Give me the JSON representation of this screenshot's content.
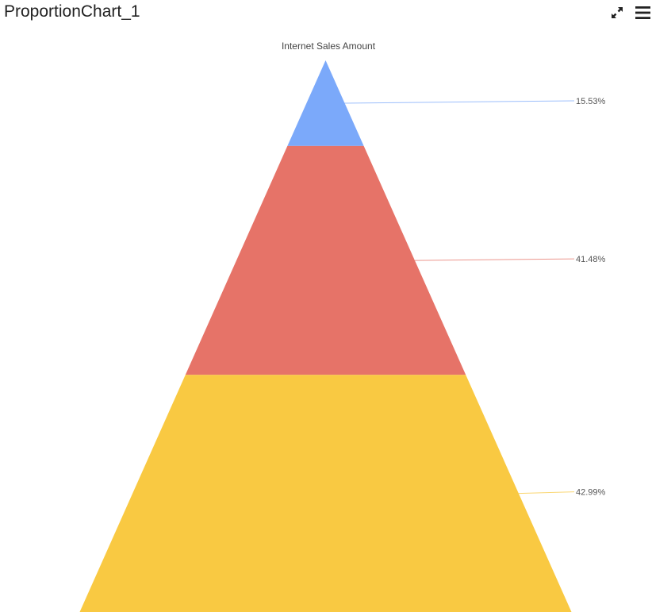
{
  "widget": {
    "title": "ProportionChart_1",
    "expand_icon": "expand-arrows-icon",
    "menu_icon": "hamburger-menu-icon"
  },
  "chart_data": {
    "type": "pyramid",
    "title": "Internet Sales Amount",
    "segments": [
      {
        "value": 15.53,
        "label": "15.53%",
        "color": "#7BA9FA"
      },
      {
        "value": 41.48,
        "label": "41.48%",
        "color": "#E67368"
      },
      {
        "value": 42.99,
        "label": "42.99%",
        "color": "#F9C942"
      }
    ]
  }
}
